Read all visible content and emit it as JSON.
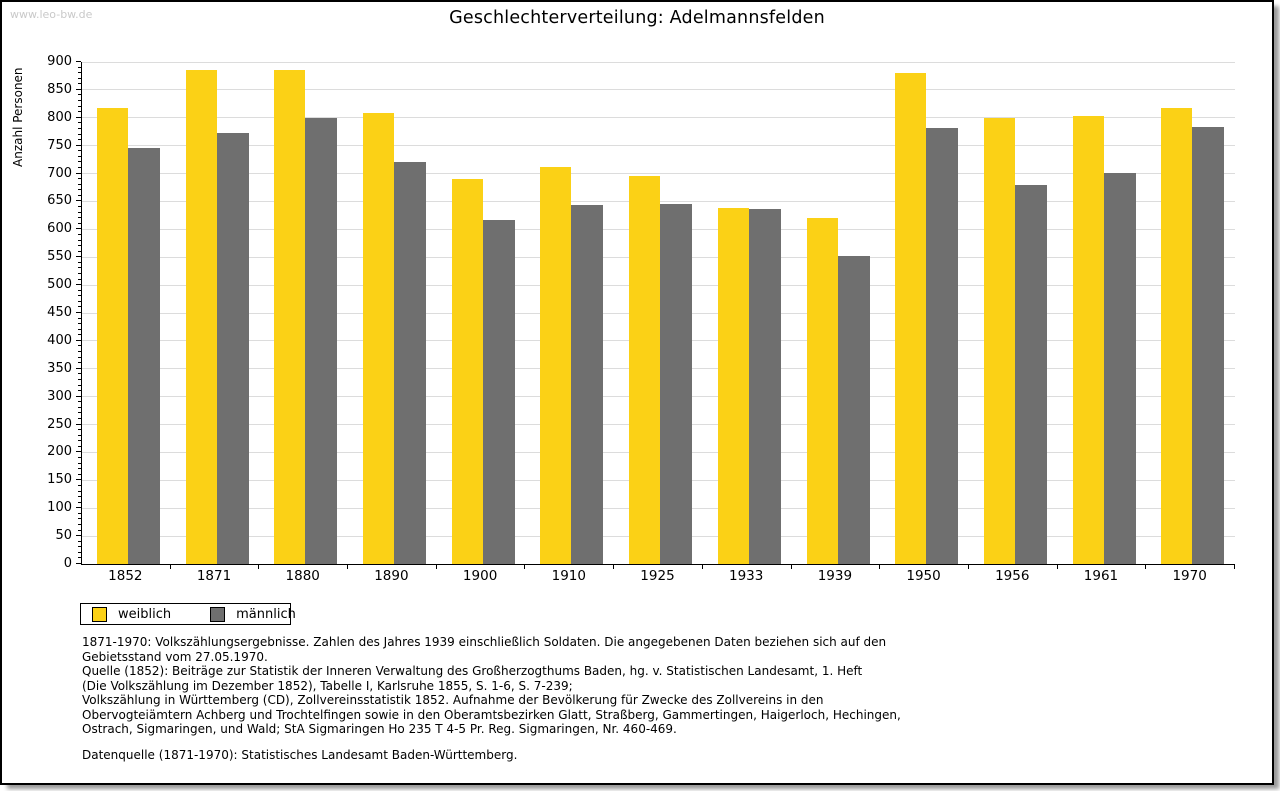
{
  "page": {
    "watermark": "www.leo-bw.de",
    "title": "Geschlechterverteilung: Adelmannsfelden"
  },
  "chart_data": {
    "type": "bar",
    "title": "Geschlechterverteilung: Adelmannsfelden",
    "xlabel": "",
    "ylabel": "Anzahl Personen",
    "ylim": [
      0,
      900
    ],
    "ytick_step": 50,
    "yminor_step": 10,
    "grid": true,
    "legend_position": "bottom-left",
    "categories": [
      "1852",
      "1871",
      "1880",
      "1890",
      "1900",
      "1910",
      "1925",
      "1933",
      "1939",
      "1950",
      "1956",
      "1961",
      "1970"
    ],
    "series": [
      {
        "name": "weiblich",
        "color": "#FBD116",
        "values": [
          818,
          886,
          886,
          808,
          690,
          711,
          696,
          638,
          620,
          881,
          799,
          803,
          817
        ]
      },
      {
        "name": "männlich",
        "color": "#6F6F6F",
        "values": [
          746,
          773,
          800,
          720,
          617,
          644,
          646,
          636,
          552,
          782,
          679,
          701,
          784
        ]
      }
    ]
  },
  "legend": {
    "items": [
      {
        "label": "weiblich",
        "color": "#FBD116"
      },
      {
        "label": "männlich",
        "color": "#6F6F6F"
      }
    ]
  },
  "notes": {
    "lines": [
      "1871-1970: Volkszählungsergebnisse. Zahlen des Jahres 1939 einschließlich Soldaten. Die angegebenen Daten beziehen sich auf den",
      "Gebietsstand vom 27.05.1970.",
      "Quelle (1852): Beiträge zur Statistik der Inneren Verwaltung des Großherzogthums Baden, hg. v. Statistischen Landesamt, 1. Heft",
      "(Die Volkszählung im Dezember 1852), Tabelle I, Karlsruhe 1855, S. 1-6, S. 7-239;",
      "Volkszählung in Württemberg (CD), Zollvereinsstatistik 1852. Aufnahme der Bevölkerung für Zwecke des Zollvereins in den",
      "Obervogteiämtern Achberg und Trochtelfingen sowie in den Oberamtsbezirken Glatt, Straßberg, Gammertingen, Haigerloch, Hechingen,",
      "Ostrach, Sigmaringen, und Wald; StA Sigmaringen Ho 235 T 4-5 Pr. Reg. Sigmaringen, Nr. 460-469."
    ],
    "datasource": "Datenquelle (1871-1970): Statistisches Landesamt Baden-Württemberg."
  },
  "colors": {
    "gridline": "#dcdcdc",
    "axis": "#000000",
    "watermark": "#c9c9c9",
    "page_background": "#ffffff"
  }
}
